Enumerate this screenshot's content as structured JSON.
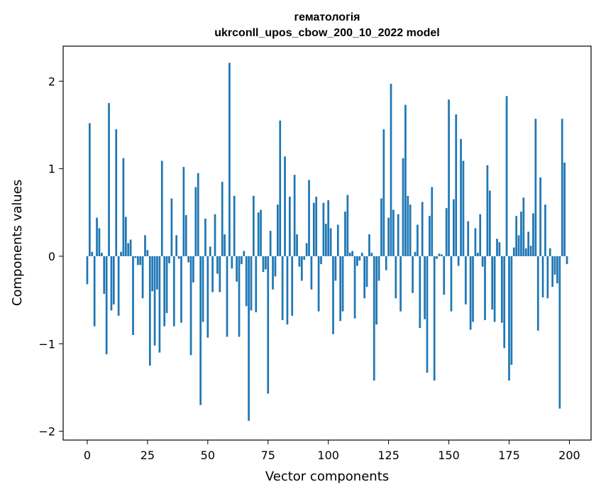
{
  "chart_data": {
    "type": "bar",
    "title": "гематологія",
    "subtitle": "ukrconll_upos_cbow_200_10_2022 model",
    "xlabel": "Vector components",
    "ylabel": "Components values",
    "xlim": [
      -10,
      209
    ],
    "ylim": [
      -2.1,
      2.4
    ],
    "xticks": [
      0,
      25,
      50,
      75,
      100,
      125,
      150,
      175,
      200
    ],
    "xtick_labels": [
      "0",
      "25",
      "50",
      "75",
      "100",
      "125",
      "150",
      "175",
      "200"
    ],
    "yticks": [
      -2,
      -1,
      0,
      1,
      2
    ],
    "ytick_labels": [
      "−2",
      "−1",
      "0",
      "1",
      "2"
    ],
    "grid": false,
    "bar_color": "#1f77b4",
    "x": [
      0,
      1,
      2,
      3,
      4,
      5,
      6,
      7,
      8,
      9,
      10,
      11,
      12,
      13,
      14,
      15,
      16,
      17,
      18,
      19,
      20,
      21,
      22,
      23,
      24,
      25,
      26,
      27,
      28,
      29,
      30,
      31,
      32,
      33,
      34,
      35,
      36,
      37,
      38,
      39,
      40,
      41,
      42,
      43,
      44,
      45,
      46,
      47,
      48,
      49,
      50,
      51,
      52,
      53,
      54,
      55,
      56,
      57,
      58,
      59,
      60,
      61,
      62,
      63,
      64,
      65,
      66,
      67,
      68,
      69,
      70,
      71,
      72,
      73,
      74,
      75,
      76,
      77,
      78,
      79,
      80,
      81,
      82,
      83,
      84,
      85,
      86,
      87,
      88,
      89,
      90,
      91,
      92,
      93,
      94,
      95,
      96,
      97,
      98,
      99,
      100,
      101,
      102,
      103,
      104,
      105,
      106,
      107,
      108,
      109,
      110,
      111,
      112,
      113,
      114,
      115,
      116,
      117,
      118,
      119,
      120,
      121,
      122,
      123,
      124,
      125,
      126,
      127,
      128,
      129,
      130,
      131,
      132,
      133,
      134,
      135,
      136,
      137,
      138,
      139,
      140,
      141,
      142,
      143,
      144,
      145,
      146,
      147,
      148,
      149,
      150,
      151,
      152,
      153,
      154,
      155,
      156,
      157,
      158,
      159,
      160,
      161,
      162,
      163,
      164,
      165,
      166,
      167,
      168,
      169,
      170,
      171,
      172,
      173,
      174,
      175,
      176,
      177,
      178,
      179,
      180,
      181,
      182,
      183,
      184,
      185,
      186,
      187,
      188,
      189,
      190,
      191,
      192,
      193,
      194,
      195,
      196,
      197,
      198,
      199
    ],
    "values": [
      -0.32,
      1.52,
      0.05,
      -0.8,
      0.44,
      0.32,
      0.04,
      -0.43,
      -1.12,
      1.75,
      -0.62,
      -0.55,
      1.45,
      -0.68,
      0.05,
      1.12,
      0.45,
      0.15,
      0.19,
      -0.9,
      -0.02,
      -0.1,
      -0.1,
      -0.48,
      0.24,
      0.07,
      -1.25,
      -0.4,
      -1.02,
      -0.38,
      -1.1,
      1.09,
      -0.8,
      -0.65,
      -0.08,
      0.66,
      -0.8,
      0.24,
      -0.03,
      -0.76,
      1.02,
      0.47,
      -0.07,
      -1.13,
      -0.3,
      0.79,
      0.95,
      -1.7,
      -0.75,
      0.43,
      -0.93,
      0.11,
      -0.41,
      0.48,
      -0.2,
      -0.41,
      0.85,
      0.25,
      -0.92,
      2.21,
      -0.14,
      0.69,
      -0.29,
      -0.92,
      -0.09,
      0.06,
      -0.57,
      -1.88,
      -0.62,
      0.69,
      -0.64,
      0.5,
      0.53,
      -0.18,
      -0.15,
      -1.57,
      0.29,
      -0.38,
      -0.23,
      0.59,
      1.55,
      -0.73,
      1.14,
      -0.78,
      0.68,
      -0.68,
      0.93,
      0.25,
      -0.12,
      -0.28,
      -0.04,
      0.15,
      0.87,
      -0.38,
      0.61,
      0.68,
      -0.63,
      -0.09,
      0.61,
      0.37,
      0.64,
      0.32,
      -0.89,
      -0.28,
      0.36,
      -0.74,
      -0.63,
      0.51,
      0.7,
      0.04,
      0.06,
      -0.71,
      -0.11,
      -0.05,
      0.04,
      -0.48,
      -0.35,
      0.25,
      0.04,
      -1.42,
      -0.78,
      -0.28,
      0.66,
      1.45,
      -0.16,
      0.44,
      1.97,
      0.53,
      -0.48,
      0.48,
      -0.63,
      1.12,
      1.73,
      0.69,
      0.59,
      -0.42,
      0.05,
      0.36,
      -0.82,
      0.62,
      -0.72,
      -1.33,
      0.46,
      0.79,
      -1.42,
      -0.03,
      0.03,
      0.02,
      -0.44,
      0.55,
      1.79,
      -0.63,
      0.65,
      1.62,
      -0.11,
      1.34,
      1.09,
      -0.55,
      0.4,
      -0.84,
      -0.75,
      0.32,
      0.04,
      0.48,
      -0.12,
      -0.73,
      1.04,
      0.75,
      -0.61,
      -0.75,
      0.2,
      0.16,
      -0.76,
      -1.05,
      1.83,
      -1.42,
      -1.24,
      0.1,
      0.46,
      0.24,
      0.51,
      0.67,
      0.09,
      0.28,
      0.12,
      0.49,
      1.57,
      -0.85,
      0.9,
      -0.47,
      0.59,
      -0.48,
      0.09,
      -0.35,
      -0.21,
      -0.31,
      -1.74,
      1.57,
      1.07,
      -0.09
    ]
  }
}
